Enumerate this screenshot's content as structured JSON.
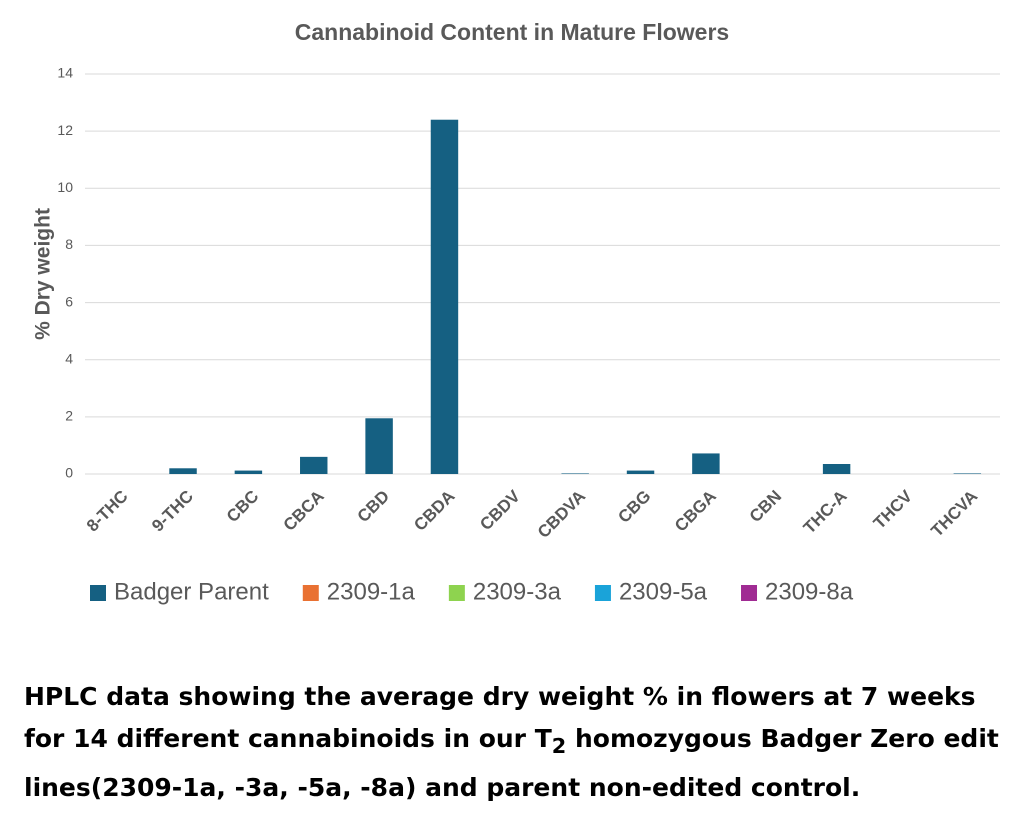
{
  "chart_data": {
    "type": "bar",
    "title": "Cannabinoid Content in Mature Flowers",
    "y_label": "% Dry weight",
    "categories": [
      "8-THC",
      "9-THC",
      "CBC",
      "CBCA",
      "CBD",
      "CBDA",
      "CBDV",
      "CBDVA",
      "CBG",
      "CBGA",
      "CBN",
      "THC-A",
      "THCV",
      "THCVA"
    ],
    "series": [
      {
        "name": "Badger Parent",
        "color": "#156082",
        "values": [
          0,
          0.2,
          0.12,
          0.6,
          1.95,
          12.4,
          0,
          0.02,
          0.12,
          0.72,
          0,
          0.35,
          0,
          0.02
        ]
      },
      {
        "name": "2309-1a",
        "color": "#e97132",
        "values": [
          0,
          0,
          0,
          0,
          0,
          0,
          0,
          0,
          0,
          0,
          0,
          0,
          0,
          0
        ]
      },
      {
        "name": "2309-3a",
        "color": "#8ed34f",
        "values": [
          0,
          0,
          0,
          0,
          0,
          0,
          0,
          0,
          0,
          0,
          0,
          0,
          0,
          0
        ]
      },
      {
        "name": "2309-5a",
        "color": "#1aa3d9",
        "values": [
          0,
          0,
          0,
          0,
          0,
          0,
          0,
          0,
          0,
          0,
          0,
          0,
          0,
          0
        ]
      },
      {
        "name": "2309-8a",
        "color": "#a02b93",
        "values": [
          0,
          0,
          0,
          0,
          0,
          0,
          0,
          0,
          0,
          0,
          0,
          0,
          0,
          0
        ]
      }
    ],
    "ylim": [
      0,
      14
    ],
    "yticks": [
      0,
      2,
      4,
      6,
      8,
      10,
      12,
      14
    ],
    "grid": true,
    "legend": "bottom"
  },
  "caption": {
    "before": "HPLC data showing the average dry weight % in flowers at 7 weeks for 14 different cannabinoids in our T",
    "subscript": "2",
    "after": " homozygous Badger Zero edit lines(2309-1a, -3a, -5a, -8a) and parent non-edited control."
  }
}
